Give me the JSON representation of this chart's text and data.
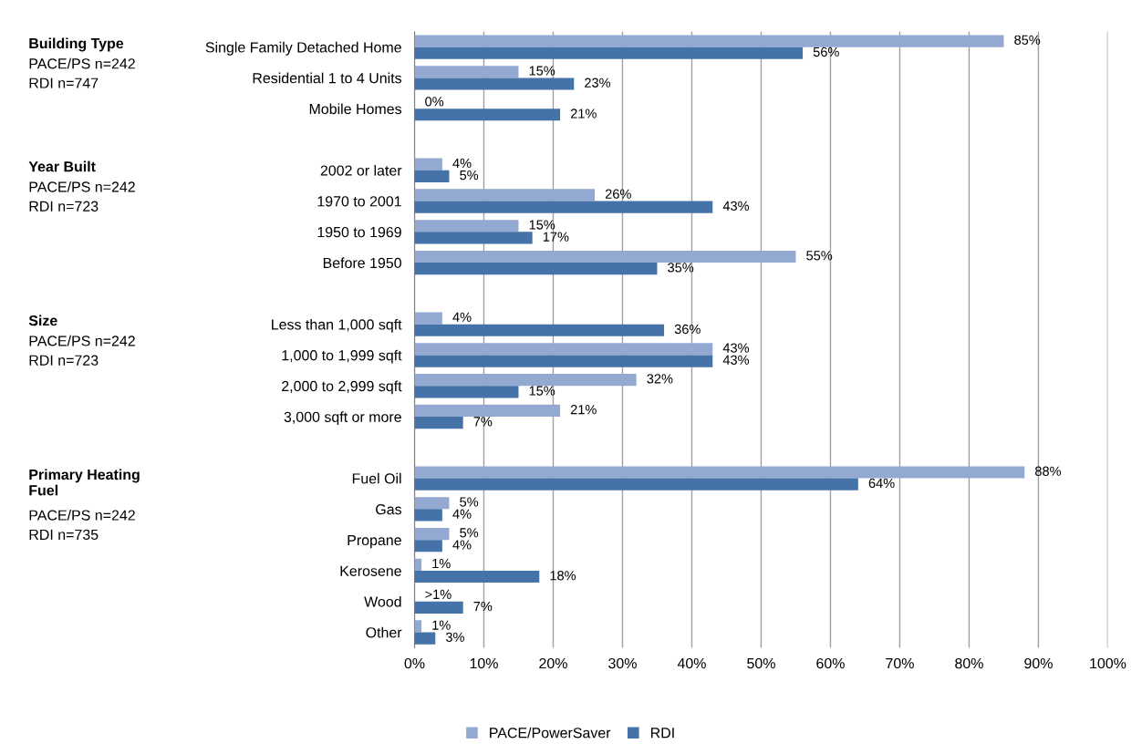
{
  "chart_data": {
    "type": "bar",
    "orientation": "horizontal",
    "categories": [
      "Single Family Detached Home",
      "Residential 1 to 4 Units",
      "Mobile Homes",
      null,
      "2002 or later",
      "1970 to 2001",
      "1950 to 1969",
      "Before 1950",
      null,
      "Less than 1,000 sqft",
      "1,000 to 1,999 sqft",
      "2,000 to 2,999 sqft",
      "3,000 sqft or more",
      null,
      "Fuel Oil",
      "Gas",
      "Propane",
      "Kerosene",
      "Wood",
      "Other"
    ],
    "series": [
      {
        "name": "PACE/PowerSaver",
        "color": "#94a9d2",
        "values": [
          85,
          15,
          0,
          null,
          4,
          26,
          15,
          55,
          null,
          4,
          43,
          32,
          21,
          null,
          88,
          5,
          5,
          1,
          0,
          1
        ],
        "value_labels": [
          "85%",
          "15%",
          "0%",
          null,
          "4%",
          "26%",
          "15%",
          "55%",
          null,
          "4%",
          "43%",
          "32%",
          "21%",
          null,
          "88%",
          "5%",
          "5%",
          "1%",
          ">1%",
          "1%"
        ]
      },
      {
        "name": "RDI",
        "color": "#4572a7",
        "values": [
          56,
          23,
          21,
          null,
          5,
          43,
          17,
          35,
          null,
          36,
          43,
          15,
          7,
          null,
          64,
          4,
          4,
          18,
          7,
          3
        ],
        "value_labels": [
          "56%",
          "23%",
          "21%",
          null,
          "5%",
          "43%",
          "17%",
          "35%",
          null,
          "36%",
          "43%",
          "15%",
          "7%",
          null,
          "64%",
          "4%",
          "4%",
          "18%",
          "7%",
          "3%"
        ]
      }
    ],
    "xlim": [
      0,
      100
    ],
    "xticks": [
      {
        "value": 0,
        "label": "0%"
      },
      {
        "value": 10,
        "label": "10%"
      },
      {
        "value": 20,
        "label": "20%"
      },
      {
        "value": 30,
        "label": "30%"
      },
      {
        "value": 40,
        "label": "40%"
      },
      {
        "value": 50,
        "label": "50%"
      },
      {
        "value": 60,
        "label": "60%"
      },
      {
        "value": 70,
        "label": "70%"
      },
      {
        "value": 80,
        "label": "80%"
      },
      {
        "value": 90,
        "label": "90%"
      },
      {
        "value": 100,
        "label": "100%"
      }
    ],
    "grid": "x",
    "legend": "bottom",
    "annotations": [
      "Building Type",
      "PACE/PS n=242\nRDI n=747",
      "Year Built",
      "PACE/PS n=242\nRDI n=723",
      "Size",
      "PACE/PS n=242\nRDI n=723",
      "Primary Heating\nFuel",
      "PACE/PS n=242\nRDI n=735"
    ]
  }
}
